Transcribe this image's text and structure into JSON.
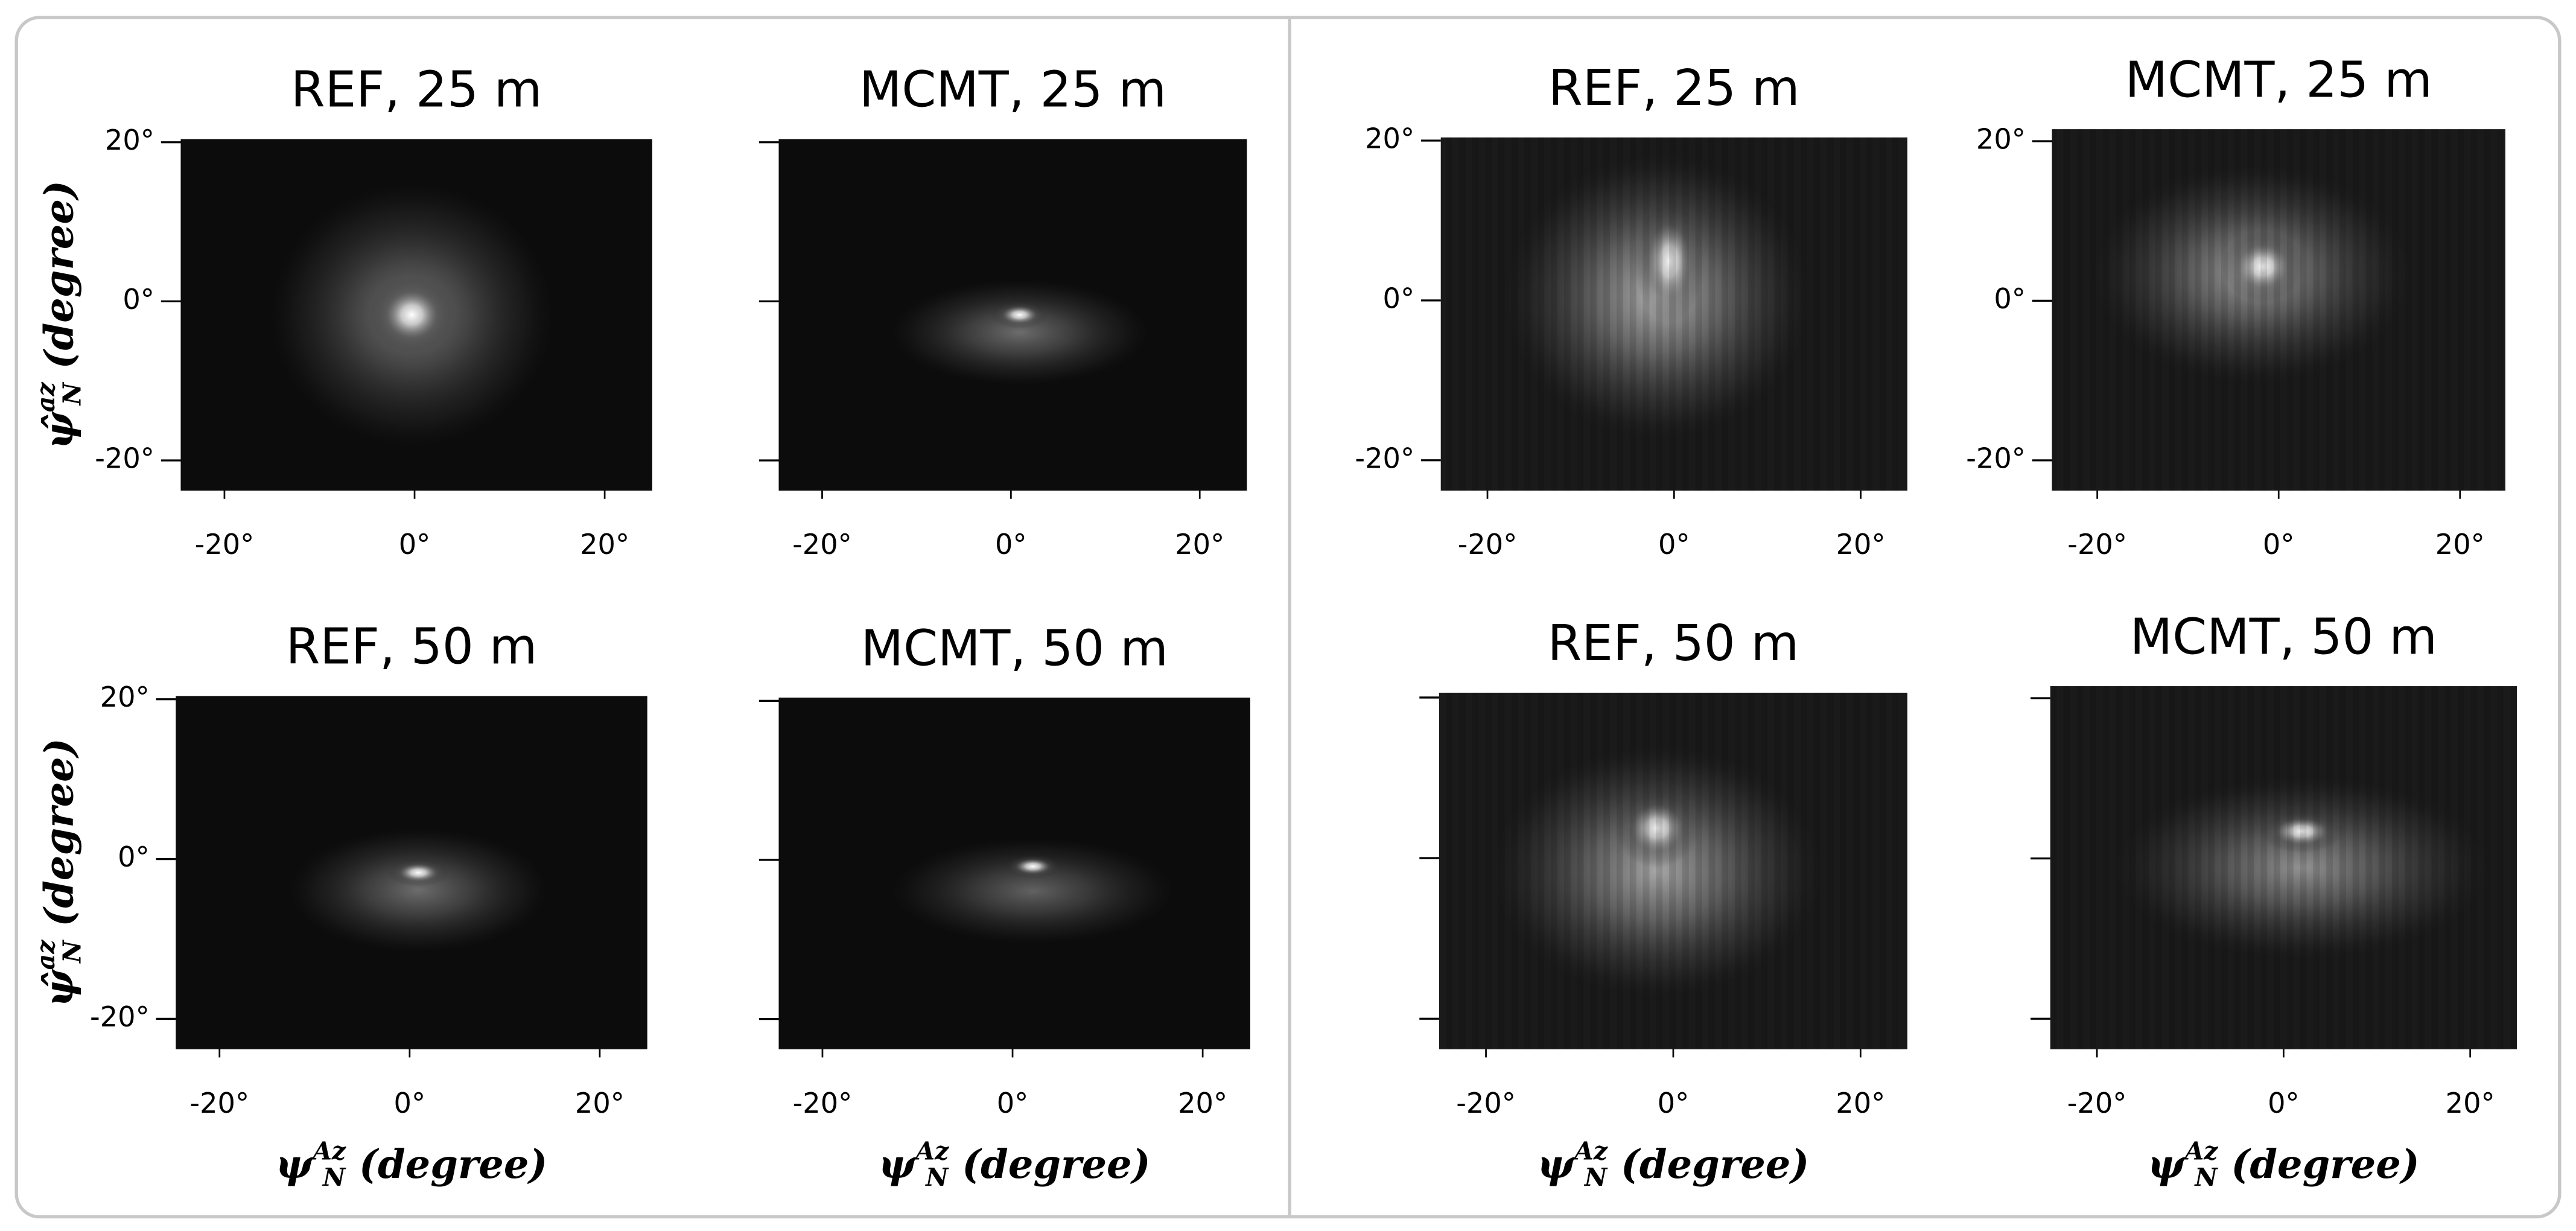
{
  "chart_data": [
    {
      "type": "heatmap",
      "title": "REF, 25 m",
      "xlim": [
        -24.6,
        25
      ],
      "ylim": [
        -23.8,
        20.4
      ],
      "xticks": [
        {
          "value": -20,
          "label": "-20°"
        },
        {
          "value": 0,
          "label": "0°"
        },
        {
          "value": 20,
          "label": "20°"
        }
      ],
      "yticks": [
        {
          "value": -20,
          "label": "-20°"
        },
        {
          "value": 0,
          "label": "0°"
        },
        {
          "value": 20,
          "label": "20°"
        }
      ],
      "ylabel": {
        "symbol": "ψ̂",
        "sub": "N",
        "sup": "az",
        "unit": " (degree)"
      }
    },
    {
      "type": "heatmap",
      "title": "MCMT, 25 m",
      "xlim": [
        -24.6,
        25
      ],
      "ylim": [
        -23.8,
        20.4
      ],
      "xticks": [
        {
          "value": -20,
          "label": "-20°"
        },
        {
          "value": 0,
          "label": "0°"
        },
        {
          "value": 20,
          "label": "20°"
        }
      ],
      "yticks": [
        -20,
        0,
        20
      ]
    },
    {
      "type": "heatmap",
      "title": "REF, 50 m",
      "xlim": [
        -24.6,
        25
      ],
      "ylim": [
        -23.8,
        20.4
      ],
      "xticks": [
        {
          "value": -20,
          "label": "-20°"
        },
        {
          "value": 0,
          "label": "0°"
        },
        {
          "value": 20,
          "label": "20°"
        }
      ],
      "yticks": [
        {
          "value": -20,
          "label": "-20°"
        },
        {
          "value": 0,
          "label": "0°"
        },
        {
          "value": 20,
          "label": "20°"
        }
      ],
      "xlabel": {
        "symbol": "ψ",
        "sub": "N",
        "sup": "Az",
        "unit": " (degree)"
      },
      "ylabel": {
        "symbol": "ψ̂",
        "sub": "N",
        "sup": "az",
        "unit": " (degree)"
      }
    },
    {
      "type": "heatmap",
      "title": "MCMT, 50 m",
      "xlim": [
        -24.6,
        25
      ],
      "ylim": [
        -23.8,
        20.4
      ],
      "xticks": [
        {
          "value": -20,
          "label": "-20°"
        },
        {
          "value": 0,
          "label": "0°"
        },
        {
          "value": 20,
          "label": "20°"
        }
      ],
      "yticks": [
        -20,
        0,
        20
      ],
      "xlabel": {
        "symbol": "ψ",
        "sub": "N",
        "sup": "Az",
        "unit": " (degree)"
      }
    },
    {
      "type": "heatmap",
      "title": "REF, 25 m",
      "xlim": [
        -25,
        25
      ],
      "ylim": [
        -23.8,
        20.4
      ],
      "xticks": [
        {
          "value": -20,
          "label": "-20°"
        },
        {
          "value": 0,
          "label": "0°"
        },
        {
          "value": 20,
          "label": "20°"
        }
      ],
      "yticks": [
        {
          "value": -20,
          "label": "-20°"
        },
        {
          "value": 0,
          "label": "0°"
        },
        {
          "value": 20,
          "label": "20°"
        }
      ]
    },
    {
      "type": "heatmap",
      "title": "MCMT, 25 m",
      "xlim": [
        -25,
        25
      ],
      "ylim": [
        -23.8,
        21.5
      ],
      "xticks": [
        {
          "value": -20,
          "label": "-20°"
        },
        {
          "value": 0,
          "label": "0°"
        },
        {
          "value": 20,
          "label": "20°"
        }
      ],
      "yticks": [
        {
          "value": -20,
          "label": "-20°"
        },
        {
          "value": 0,
          "label": "0°"
        },
        {
          "value": 20,
          "label": "20°"
        }
      ]
    },
    {
      "type": "heatmap",
      "title": "REF, 50 m",
      "xlim": [
        -25,
        25
      ],
      "ylim": [
        -23.8,
        20.6
      ],
      "xticks": [
        {
          "value": -20,
          "label": "-20°"
        },
        {
          "value": 0,
          "label": "0°"
        },
        {
          "value": 20,
          "label": "20°"
        }
      ],
      "yticks": [
        -20,
        0,
        20
      ],
      "xlabel": {
        "symbol": "ψ",
        "sub": "N",
        "sup": "Az",
        "unit": " (degree)"
      }
    },
    {
      "type": "heatmap",
      "title": "MCMT, 50 m",
      "xlim": [
        -25,
        25
      ],
      "ylim": [
        -23.8,
        21.5
      ],
      "xticks": [
        {
          "value": -20,
          "label": "-20°"
        },
        {
          "value": 0,
          "label": "0°"
        },
        {
          "value": 20,
          "label": "20°"
        }
      ],
      "yticks": [
        -20,
        0,
        20
      ],
      "xlabel": {
        "symbol": "ψ",
        "sub": "N",
        "sup": "Az",
        "unit": " (degree)"
      }
    }
  ]
}
